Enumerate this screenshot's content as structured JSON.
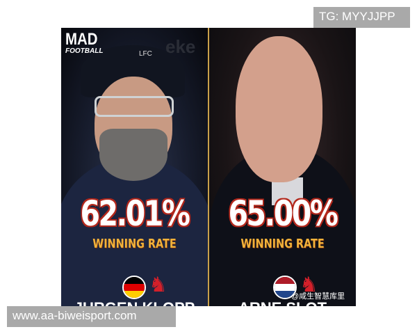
{
  "watermarks": {
    "top_right": "TG: MYYJJPP",
    "bottom_left": "www.aa-biweisport.com",
    "weibo": "@咸生智慧库里"
  },
  "branding": {
    "logo_top": "MAD",
    "logo_bottom": "FOOTBALL",
    "crest_text": "LFC",
    "background_sign": "eke"
  },
  "left": {
    "value": "62.01%",
    "label": "WINNING RATE",
    "flag": "germany",
    "club": "liverpool-crest",
    "name_partial": "JURGEN KLOPP"
  },
  "right": {
    "value": "65.00%",
    "label": "WINNING RATE",
    "flag": "netherlands",
    "club": "liverpool-crest",
    "name_partial": "ARNE SLOT"
  },
  "colors": {
    "percent_outline": "#b3281c",
    "label": "#f2b23a",
    "divider": "#c9a14a",
    "crest": "#d3202a"
  }
}
